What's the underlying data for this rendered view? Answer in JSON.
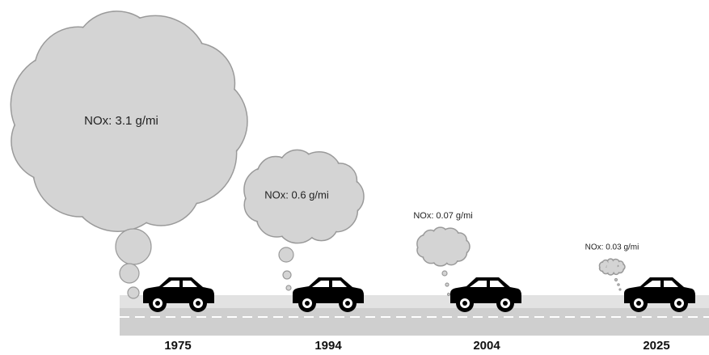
{
  "items": [
    {
      "year": "1975",
      "label": "NOx: 3.1 g/mi"
    },
    {
      "year": "1994",
      "label": "NOx: 0.6 g/mi"
    },
    {
      "year": "2004",
      "label": "NOx: 0.07 g/mi"
    },
    {
      "year": "2025",
      "label": "NOx: 0.03 g/mi"
    }
  ]
}
